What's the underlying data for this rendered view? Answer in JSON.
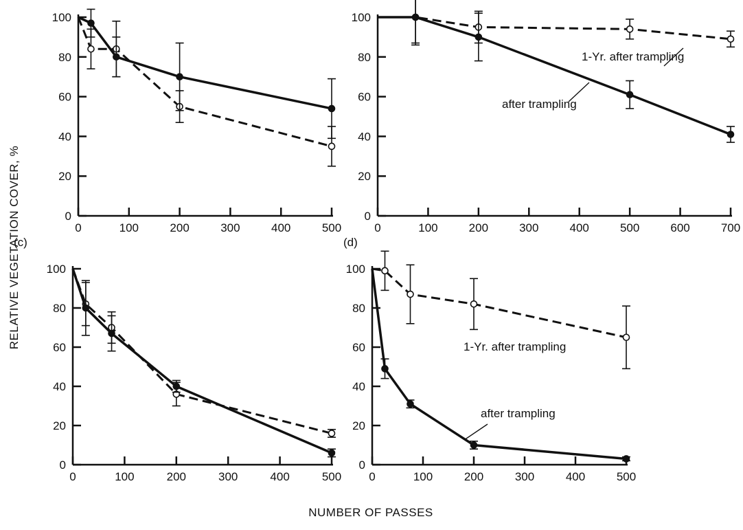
{
  "figure": {
    "ylabel": "RELATIVE VEGETATION COVER, %",
    "xlabel": "NUMBER OF PASSES"
  },
  "chart_data": [
    {
      "type": "line",
      "panel_label": "",
      "xlim": [
        0,
        500
      ],
      "ylim": [
        0,
        100
      ],
      "x_ticks": [
        0,
        100,
        200,
        300,
        400,
        500
      ],
      "y_ticks": [
        0,
        20,
        40,
        60,
        80,
        100
      ],
      "annotations": [],
      "series": [
        {
          "line": "solid",
          "marker": "filled",
          "points": [
            [
              0,
              100
            ],
            [
              25,
              97
            ],
            [
              75,
              80
            ],
            [
              200,
              70
            ],
            [
              500,
              54
            ]
          ],
          "err": [
            0,
            7,
            10,
            17,
            15
          ]
        },
        {
          "line": "dashed",
          "marker": "open",
          "points": [
            [
              0,
              100
            ],
            [
              25,
              84
            ],
            [
              75,
              84
            ],
            [
              200,
              55
            ],
            [
              500,
              35
            ]
          ],
          "err": [
            0,
            10,
            14,
            8,
            10
          ]
        }
      ]
    },
    {
      "type": "line",
      "panel_label": "",
      "xlim": [
        0,
        700
      ],
      "ylim": [
        0,
        100
      ],
      "x_ticks": [
        0,
        100,
        200,
        300,
        400,
        500,
        600,
        700
      ],
      "y_ticks": [
        0,
        20,
        40,
        60,
        80,
        100
      ],
      "annotations": [
        {
          "text": "1-Yr. after trampling",
          "series": 1
        },
        {
          "text": "after trampling",
          "series": 0
        }
      ],
      "series": [
        {
          "line": "solid",
          "marker": "filled",
          "points": [
            [
              0,
              100
            ],
            [
              75,
              100
            ],
            [
              200,
              90
            ],
            [
              500,
              61
            ],
            [
              700,
              41
            ]
          ],
          "err": [
            0,
            14,
            12,
            7,
            4
          ]
        },
        {
          "line": "dashed",
          "marker": "open",
          "points": [
            [
              0,
              100
            ],
            [
              75,
              100
            ],
            [
              200,
              95
            ],
            [
              500,
              94
            ],
            [
              700,
              89
            ]
          ],
          "err": [
            0,
            13,
            8,
            5,
            4
          ]
        }
      ]
    },
    {
      "type": "line",
      "panel_label": "(c)",
      "xlim": [
        0,
        500
      ],
      "ylim": [
        0,
        100
      ],
      "x_ticks": [
        0,
        100,
        200,
        300,
        400,
        500
      ],
      "y_ticks": [
        0,
        20,
        40,
        60,
        80,
        100
      ],
      "annotations": [],
      "series": [
        {
          "line": "solid",
          "marker": "filled",
          "points": [
            [
              0,
              100
            ],
            [
              25,
              80
            ],
            [
              75,
              67
            ],
            [
              200,
              40
            ],
            [
              500,
              6
            ]
          ],
          "err": [
            0,
            14,
            9,
            3,
            2
          ]
        },
        {
          "line": "dashed",
          "marker": "open",
          "points": [
            [
              0,
              100
            ],
            [
              25,
              82
            ],
            [
              75,
              70
            ],
            [
              200,
              36
            ],
            [
              500,
              16
            ]
          ],
          "err": [
            0,
            11,
            8,
            6,
            2
          ]
        }
      ]
    },
    {
      "type": "line",
      "panel_label": "(d)",
      "xlim": [
        0,
        500
      ],
      "ylim": [
        0,
        100
      ],
      "x_ticks": [
        0,
        100,
        200,
        300,
        400,
        500
      ],
      "y_ticks": [
        0,
        20,
        40,
        60,
        80,
        100
      ],
      "annotations": [
        {
          "text": "1-Yr. after trampling",
          "series": 1
        },
        {
          "text": "after trampling",
          "series": 0
        }
      ],
      "series": [
        {
          "line": "solid",
          "marker": "filled",
          "points": [
            [
              0,
              100
            ],
            [
              25,
              49
            ],
            [
              75,
              31
            ],
            [
              200,
              10
            ],
            [
              500,
              3
            ]
          ],
          "err": [
            0,
            5,
            2,
            2,
            1
          ]
        },
        {
          "line": "dashed",
          "marker": "open",
          "points": [
            [
              0,
              100
            ],
            [
              25,
              99
            ],
            [
              75,
              87
            ],
            [
              200,
              82
            ],
            [
              500,
              65
            ]
          ],
          "err": [
            0,
            10,
            15,
            13,
            16
          ]
        }
      ]
    }
  ]
}
